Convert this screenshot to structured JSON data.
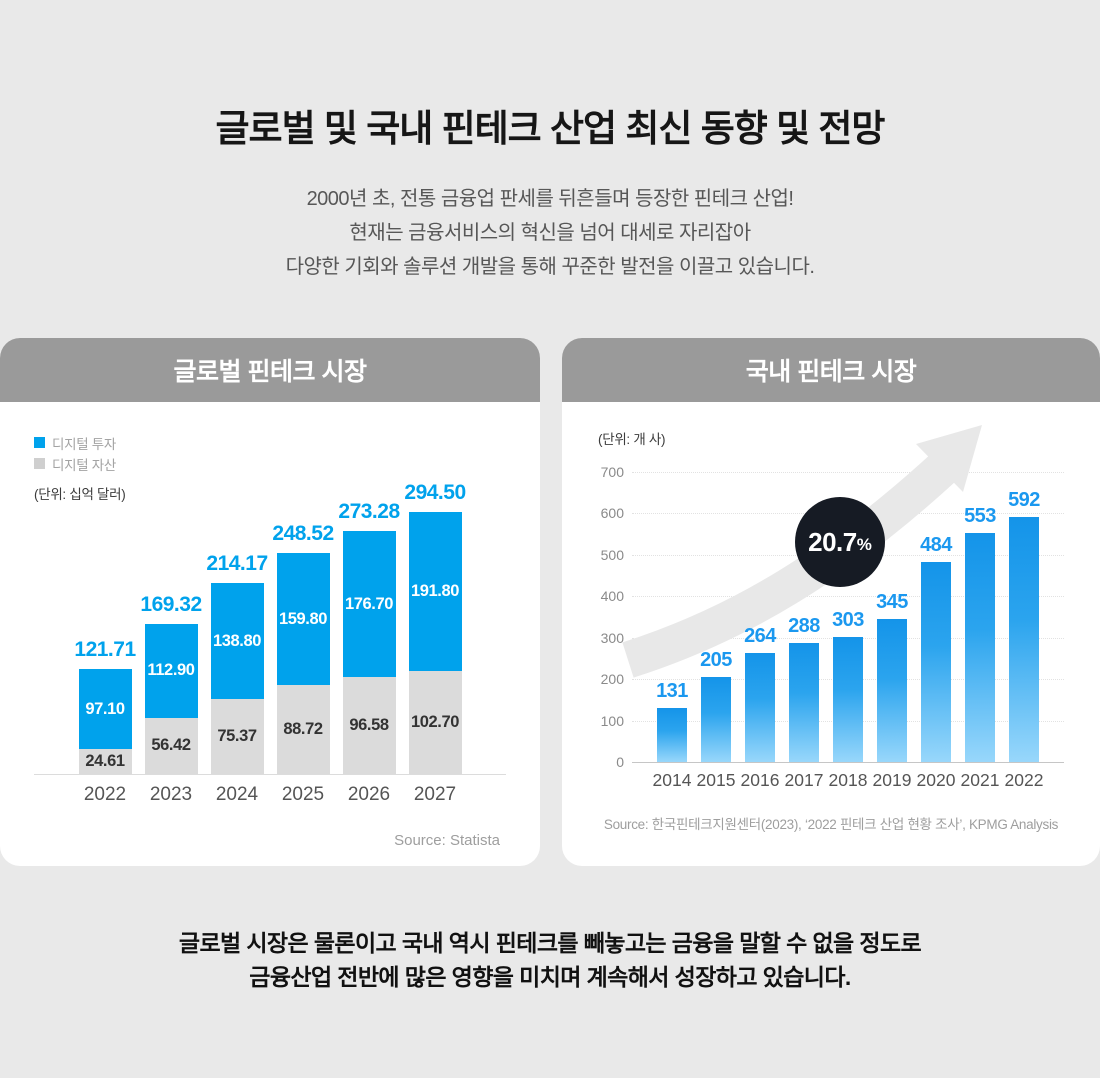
{
  "hero": {
    "title": "글로벌 및 국내 핀테크 산업 최신 동향 및 전망",
    "subtitle_lines": [
      "2000년 초, 전통 금융업 판세를 뒤흔들며 등장한 핀테크 산업!",
      "현재는 금융서비스의 혁신을 넘어 대세로 자리잡아",
      "다양한 기회와 솔루션 개발을 통해 꾸준한 발전을 이끌고 있습니다."
    ]
  },
  "global": {
    "header": "글로벌 핀테크 시장",
    "unit": "(단위: 십억 달러)",
    "source": "Source: Statista"
  },
  "domestic": {
    "header": "국내 핀테크 시장",
    "unit": "(단위: 개 사)",
    "badge": {
      "value": "20.7",
      "suffix": "%"
    },
    "source": "Source: 한국핀테크지원센터(2023), ‘2022 핀테크 산업 현황 조사’, KPMG Analysis"
  },
  "closing_lines": [
    "글로벌 시장은 물론이고 국내 역시 핀테크를 빼놓고는 금융을 말할 수 없을 정도로",
    "금융산업 전반에 많은 영향을 미치며 계속해서 성장하고 있습니다."
  ],
  "colors": {
    "accent_blue": "#00A2EC",
    "domestic_label_blue": "#1B98EF",
    "segment_gray": "#DBDBDB",
    "header_gray": "#9A9A9A",
    "badge_dark": "#161B24",
    "arrow_gray": "#E8E8E8",
    "page_bg": "#E9E9E9"
  },
  "chart_data": [
    {
      "type": "bar",
      "stacked": true,
      "title": "글로벌 핀테크 시장",
      "unit": "(단위: 십억 달러)",
      "categories": [
        "2022",
        "2023",
        "2024",
        "2025",
        "2026",
        "2027"
      ],
      "series": [
        {
          "name": "디지털 투자",
          "color": "#00A2EC",
          "values": [
            97.1,
            112.9,
            138.8,
            159.8,
            176.7,
            191.8
          ],
          "labels": [
            "97.10",
            "112.90",
            "138.80",
            "159.80",
            "176.70",
            "191.80"
          ]
        },
        {
          "name": "디지털 자산",
          "color": "#DBDBDB",
          "values": [
            24.61,
            56.42,
            75.37,
            88.72,
            96.58,
            102.7
          ],
          "labels": [
            "24.61",
            "56.42",
            "75.37",
            "88.72",
            "96.58",
            "102.70"
          ]
        }
      ],
      "totals": [
        121.71,
        169.32,
        214.17,
        248.52,
        273.28,
        294.5
      ],
      "totals_labels": [
        "121.71",
        "169.32",
        "214.17",
        "248.52",
        "273.28",
        "294.50"
      ],
      "legend_position": "top-left",
      "grid": false,
      "source": "Source: Statista"
    },
    {
      "type": "bar",
      "title": "국내 핀테크 시장",
      "unit": "(단위: 개 사)",
      "categories": [
        "2014",
        "2015",
        "2016",
        "2017",
        "2018",
        "2019",
        "2020",
        "2021",
        "2022"
      ],
      "values": [
        131,
        205,
        264,
        288,
        303,
        345,
        484,
        553,
        592
      ],
      "ylim": [
        0,
        700
      ],
      "yticks": [
        0,
        100,
        200,
        300,
        400,
        500,
        600,
        700
      ],
      "grid": true,
      "annotation": "20.7%",
      "source": "Source: 한국핀테크지원센터(2023), ‘2022 핀테크 산업 현황 조사’, KPMG Analysis"
    }
  ]
}
